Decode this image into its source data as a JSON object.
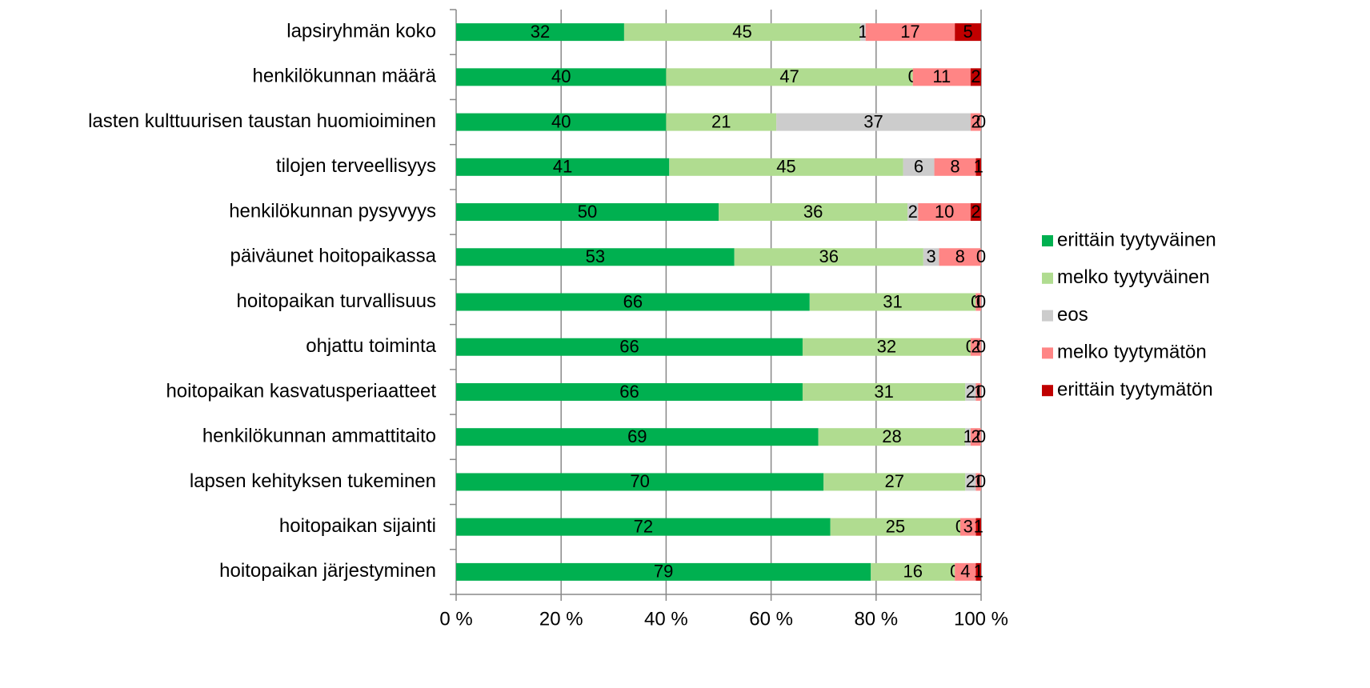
{
  "chart_data": {
    "type": "stacked_bar_100_horizontal",
    "categories": [
      "lapsiryhmän koko",
      "henkilökunnan määrä",
      "lasten kulttuurisen taustan huomioiminen",
      "tilojen terveellisyys",
      "henkilökunnan pysyvyys",
      "päiväunet hoitopaikassa",
      "hoitopaikan turvallisuus",
      "ohjattu toiminta",
      "hoitopaikan kasvatusperiaatteet",
      "henkilökunnan ammattitaito",
      "lapsen kehityksen tukeminen",
      "hoitopaikan sijainti",
      "hoitopaikan järjestyminen"
    ],
    "series": [
      {
        "name": "erittäin tyytyväinen",
        "color": "#00b050",
        "values": [
          32,
          40,
          40,
          41,
          50,
          53,
          66,
          66,
          66,
          69,
          70,
          72,
          79
        ]
      },
      {
        "name": "melko tyytyväinen",
        "color": "#b0dc90",
        "values": [
          45,
          47,
          21,
          45,
          36,
          36,
          31,
          32,
          31,
          28,
          27,
          25,
          16
        ]
      },
      {
        "name": "eos",
        "color": "#cccccc",
        "values": [
          1,
          0,
          37,
          6,
          2,
          3,
          0,
          0,
          2,
          1,
          2,
          0,
          0
        ]
      },
      {
        "name": "melko tyytymätön",
        "color": "#ff8585",
        "values": [
          17,
          11,
          2,
          8,
          10,
          8,
          1,
          2,
          1,
          2,
          1,
          3,
          4
        ]
      },
      {
        "name": "erittäin tyytymätön",
        "color": "#c00000",
        "values": [
          5,
          2,
          0,
          1,
          2,
          0,
          0,
          0,
          0,
          0,
          0,
          1,
          1
        ]
      }
    ],
    "xlim": [
      0,
      100
    ],
    "xticks": [
      {
        "value": 0,
        "label": "0 %"
      },
      {
        "value": 20,
        "label": "20 %"
      },
      {
        "value": 40,
        "label": "40 %"
      },
      {
        "value": 60,
        "label": "60 %"
      },
      {
        "value": 80,
        "label": "80 %"
      },
      {
        "value": 100,
        "label": "100 %"
      }
    ],
    "grid": true,
    "legend": "right"
  }
}
